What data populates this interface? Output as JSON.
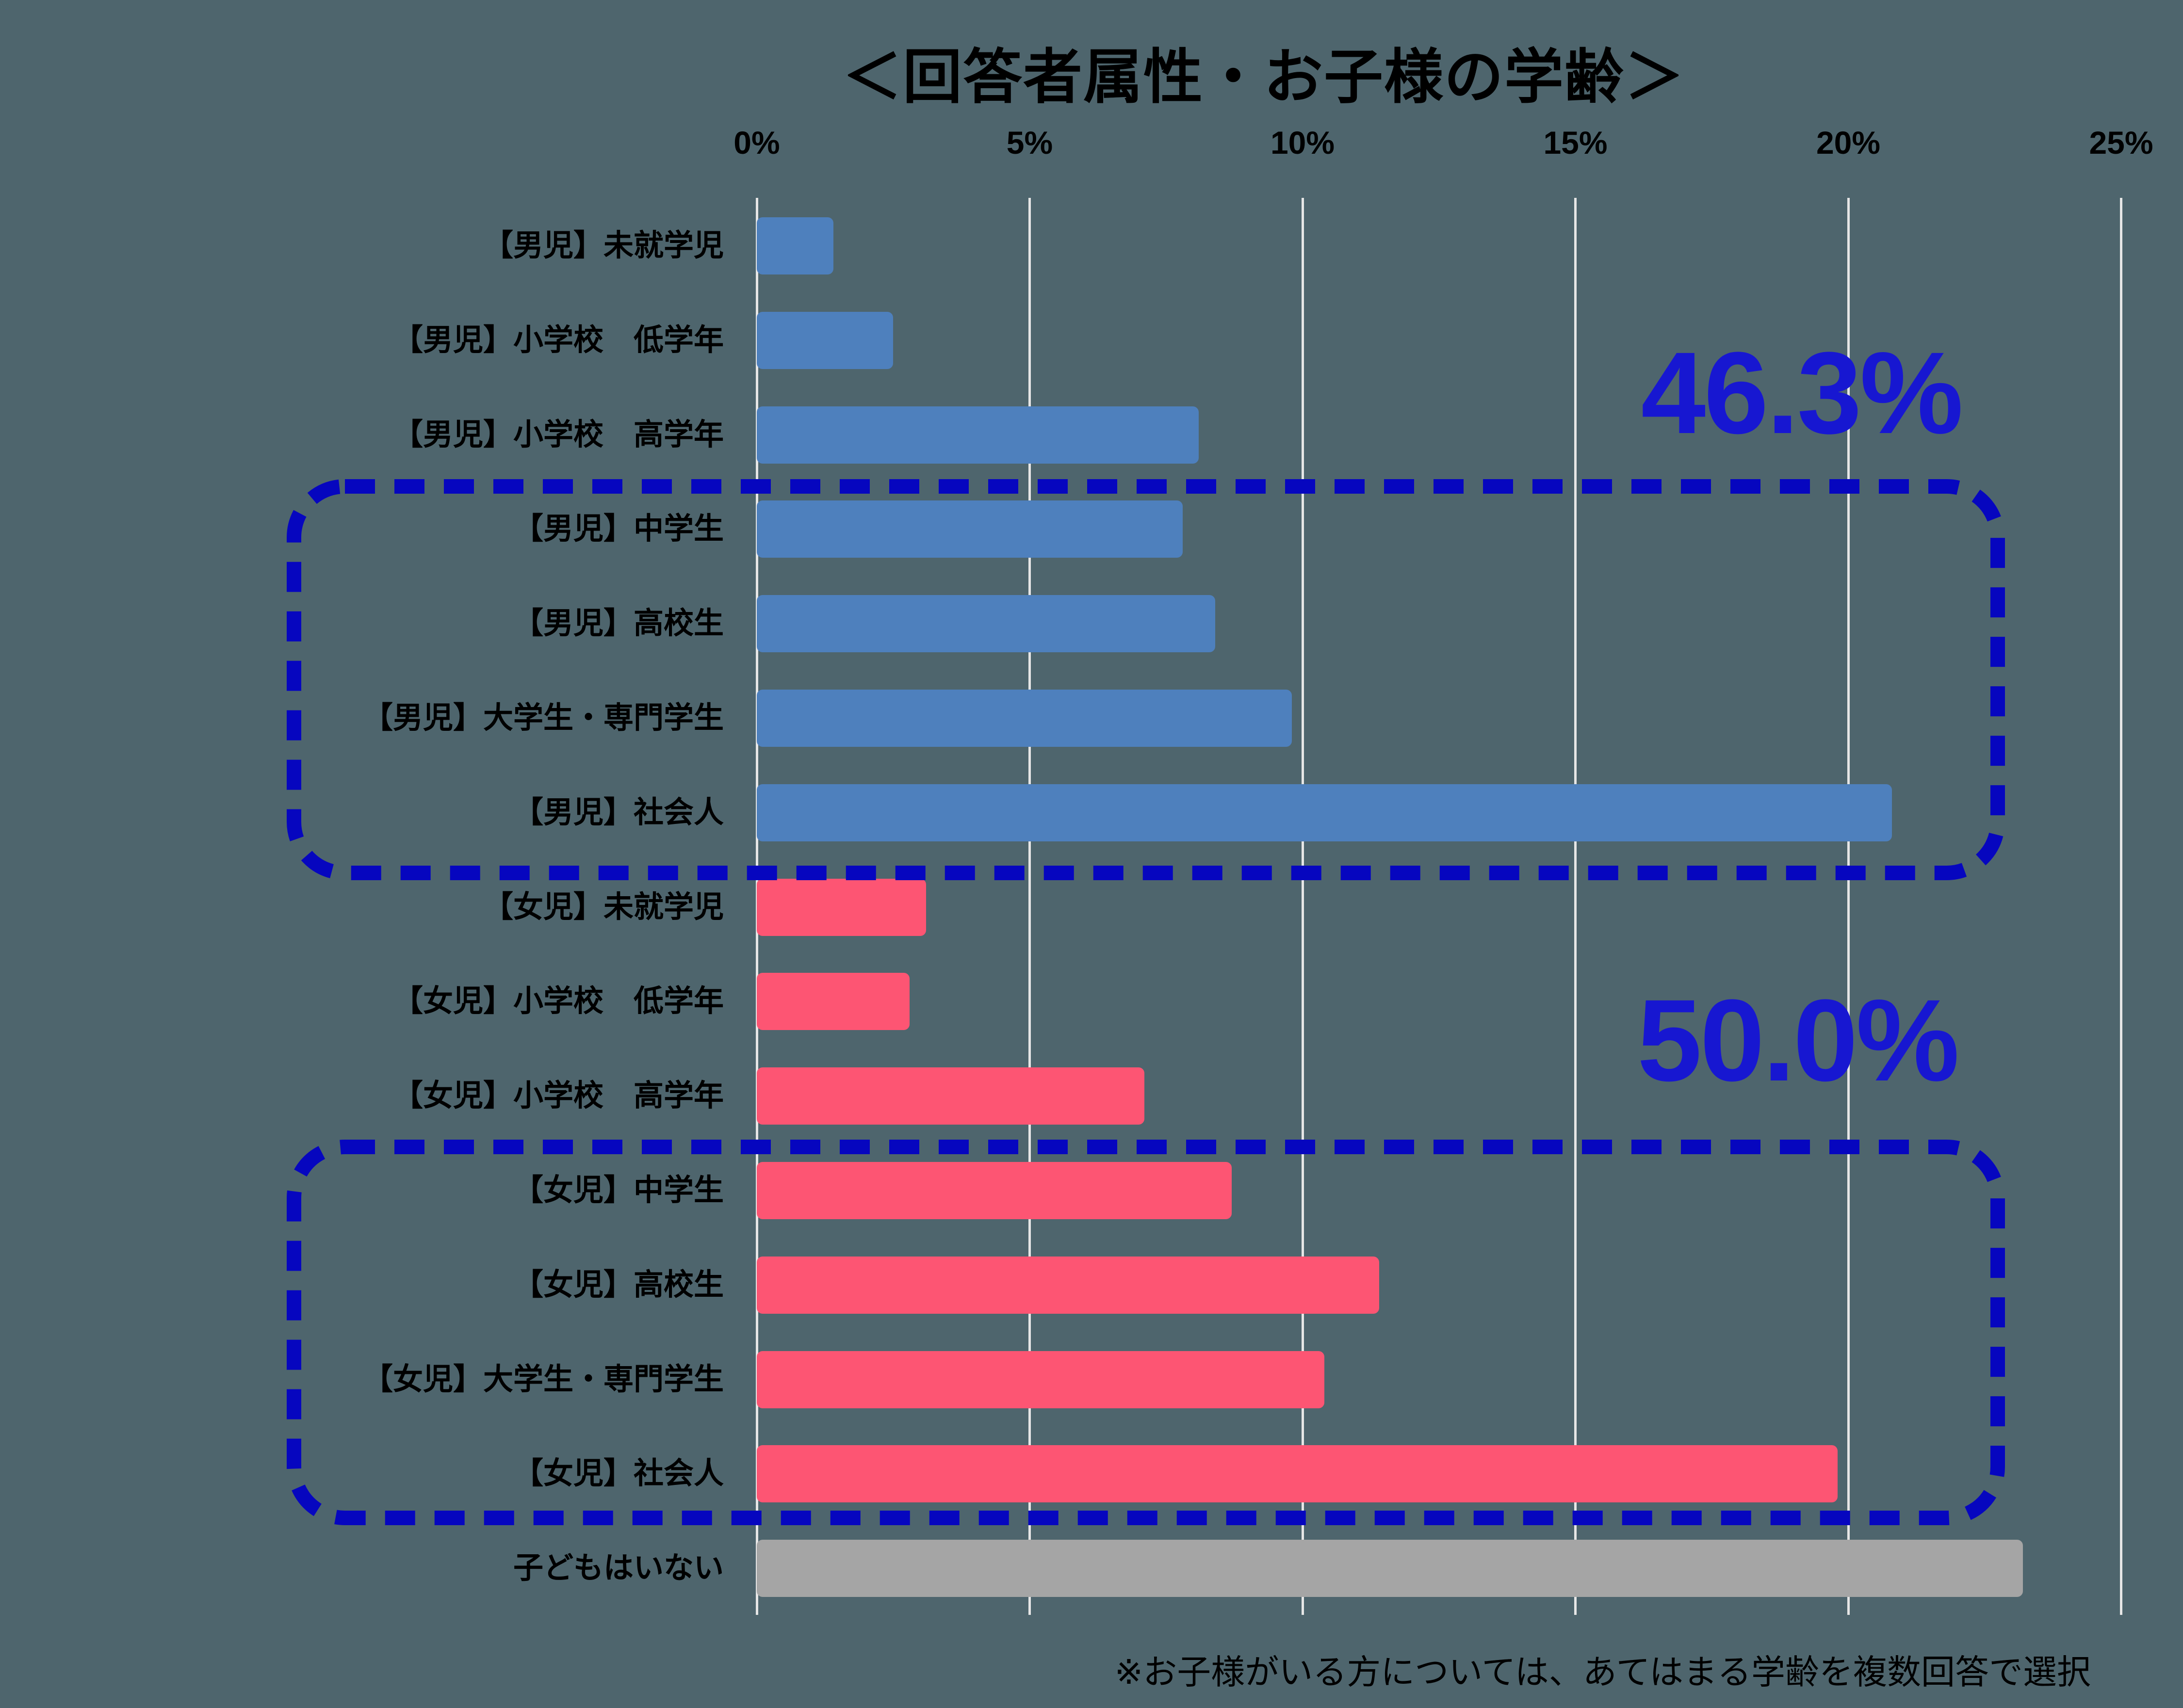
{
  "title": "＜回答者属性・お子様の学齢＞",
  "footnote": "※お子様がいる方については、あてはまる学齢を複数回答で選択",
  "colors": {
    "background": "#4e656d",
    "male_bar": "#4e80bd",
    "female_bar": "#fd5573",
    "none_bar": "#a5a5a5",
    "gridline": "#e6e6e6",
    "group_outline": "#0606bf",
    "callout_text": "#1717d1",
    "text": "#000000"
  },
  "chart_data": {
    "type": "bar",
    "orientation": "horizontal",
    "title": "＜回答者属性・お子様の学齢＞",
    "xlabel": "",
    "ylabel": "",
    "xlim": [
      0,
      25
    ],
    "grid": true,
    "x_tick_labels": [
      "0%",
      "5%",
      "10%",
      "15%",
      "20%",
      "25%"
    ],
    "x_tick_values": [
      0,
      5,
      10,
      15,
      20,
      25
    ],
    "categories": [
      "【男児】未就学児",
      "【男児】小学校　低学年",
      "【男児】小学校　高学年",
      "【男児】中学生",
      "【男児】高校生",
      "【男児】大学生・専門学生",
      "【男児】社会人",
      "【女児】未就学児",
      "【女児】小学校　低学年",
      "【女児】小学校　高学年",
      "【女児】中学生",
      "【女児】高校生",
      "【女児】大学生・専門学生",
      "【女児】社会人",
      "子どもはいない"
    ],
    "values": [
      1.4,
      2.5,
      8.1,
      7.8,
      8.4,
      9.8,
      20.8,
      3.1,
      2.8,
      7.1,
      8.7,
      11.4,
      10.4,
      19.8,
      23.2
    ],
    "groups": [
      "male",
      "male",
      "male",
      "male",
      "male",
      "male",
      "male",
      "female",
      "female",
      "female",
      "female",
      "female",
      "female",
      "female",
      "none"
    ],
    "annotations": [
      {
        "text": "46.3%",
        "applies_to": "male group 中学生〜社会人"
      },
      {
        "text": "50.0%",
        "applies_to": "female group 中学生〜社会人"
      }
    ],
    "footnote": "※お子様がいる方については、あてはまる学齢を複数回答で選択",
    "legend": "none"
  }
}
